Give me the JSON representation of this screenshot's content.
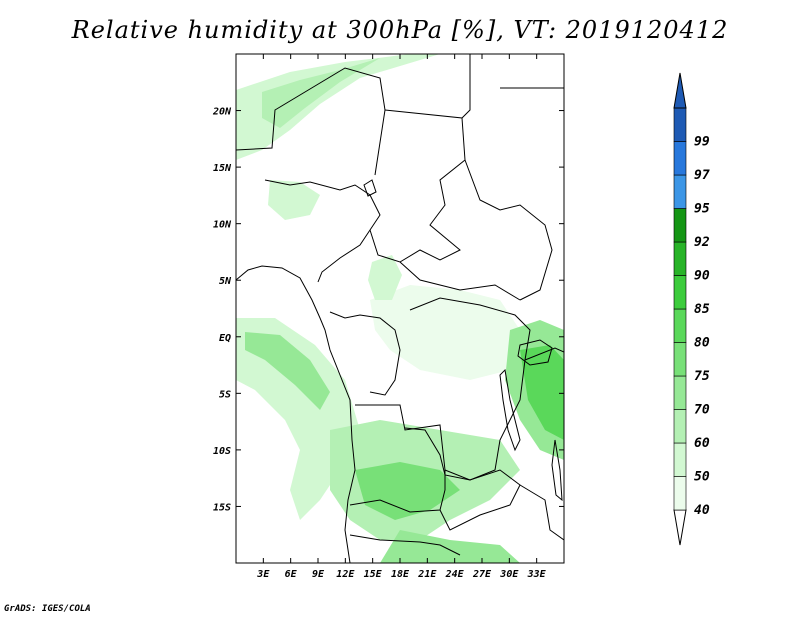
{
  "title": "Relative humidity at 300hPa [%], VT: 2019120412",
  "credit": "GrADS: IGES/COLA",
  "map": {
    "lon_range": [
      0,
      36
    ],
    "lat_range": [
      -20,
      25
    ],
    "lon_ticks": [
      "3E",
      "6E",
      "9E",
      "12E",
      "15E",
      "18E",
      "21E",
      "24E",
      "27E",
      "30E",
      "33E"
    ],
    "lat_ticks": [
      "20N",
      "15N",
      "10N",
      "5N",
      "EQ",
      "5S",
      "10S",
      "15S"
    ]
  },
  "colorbar": {
    "levels": [
      "40",
      "50",
      "60",
      "70",
      "75",
      "80",
      "85",
      "90",
      "92",
      "95",
      "97",
      "99"
    ],
    "colors": [
      "#ecfcec",
      "#d2f8d2",
      "#b4f0b4",
      "#96e896",
      "#78e078",
      "#5ad85a",
      "#3ccc3c",
      "#28b428",
      "#149614",
      "#3c96e6",
      "#2878dc",
      "#1e5ab4"
    ]
  }
}
